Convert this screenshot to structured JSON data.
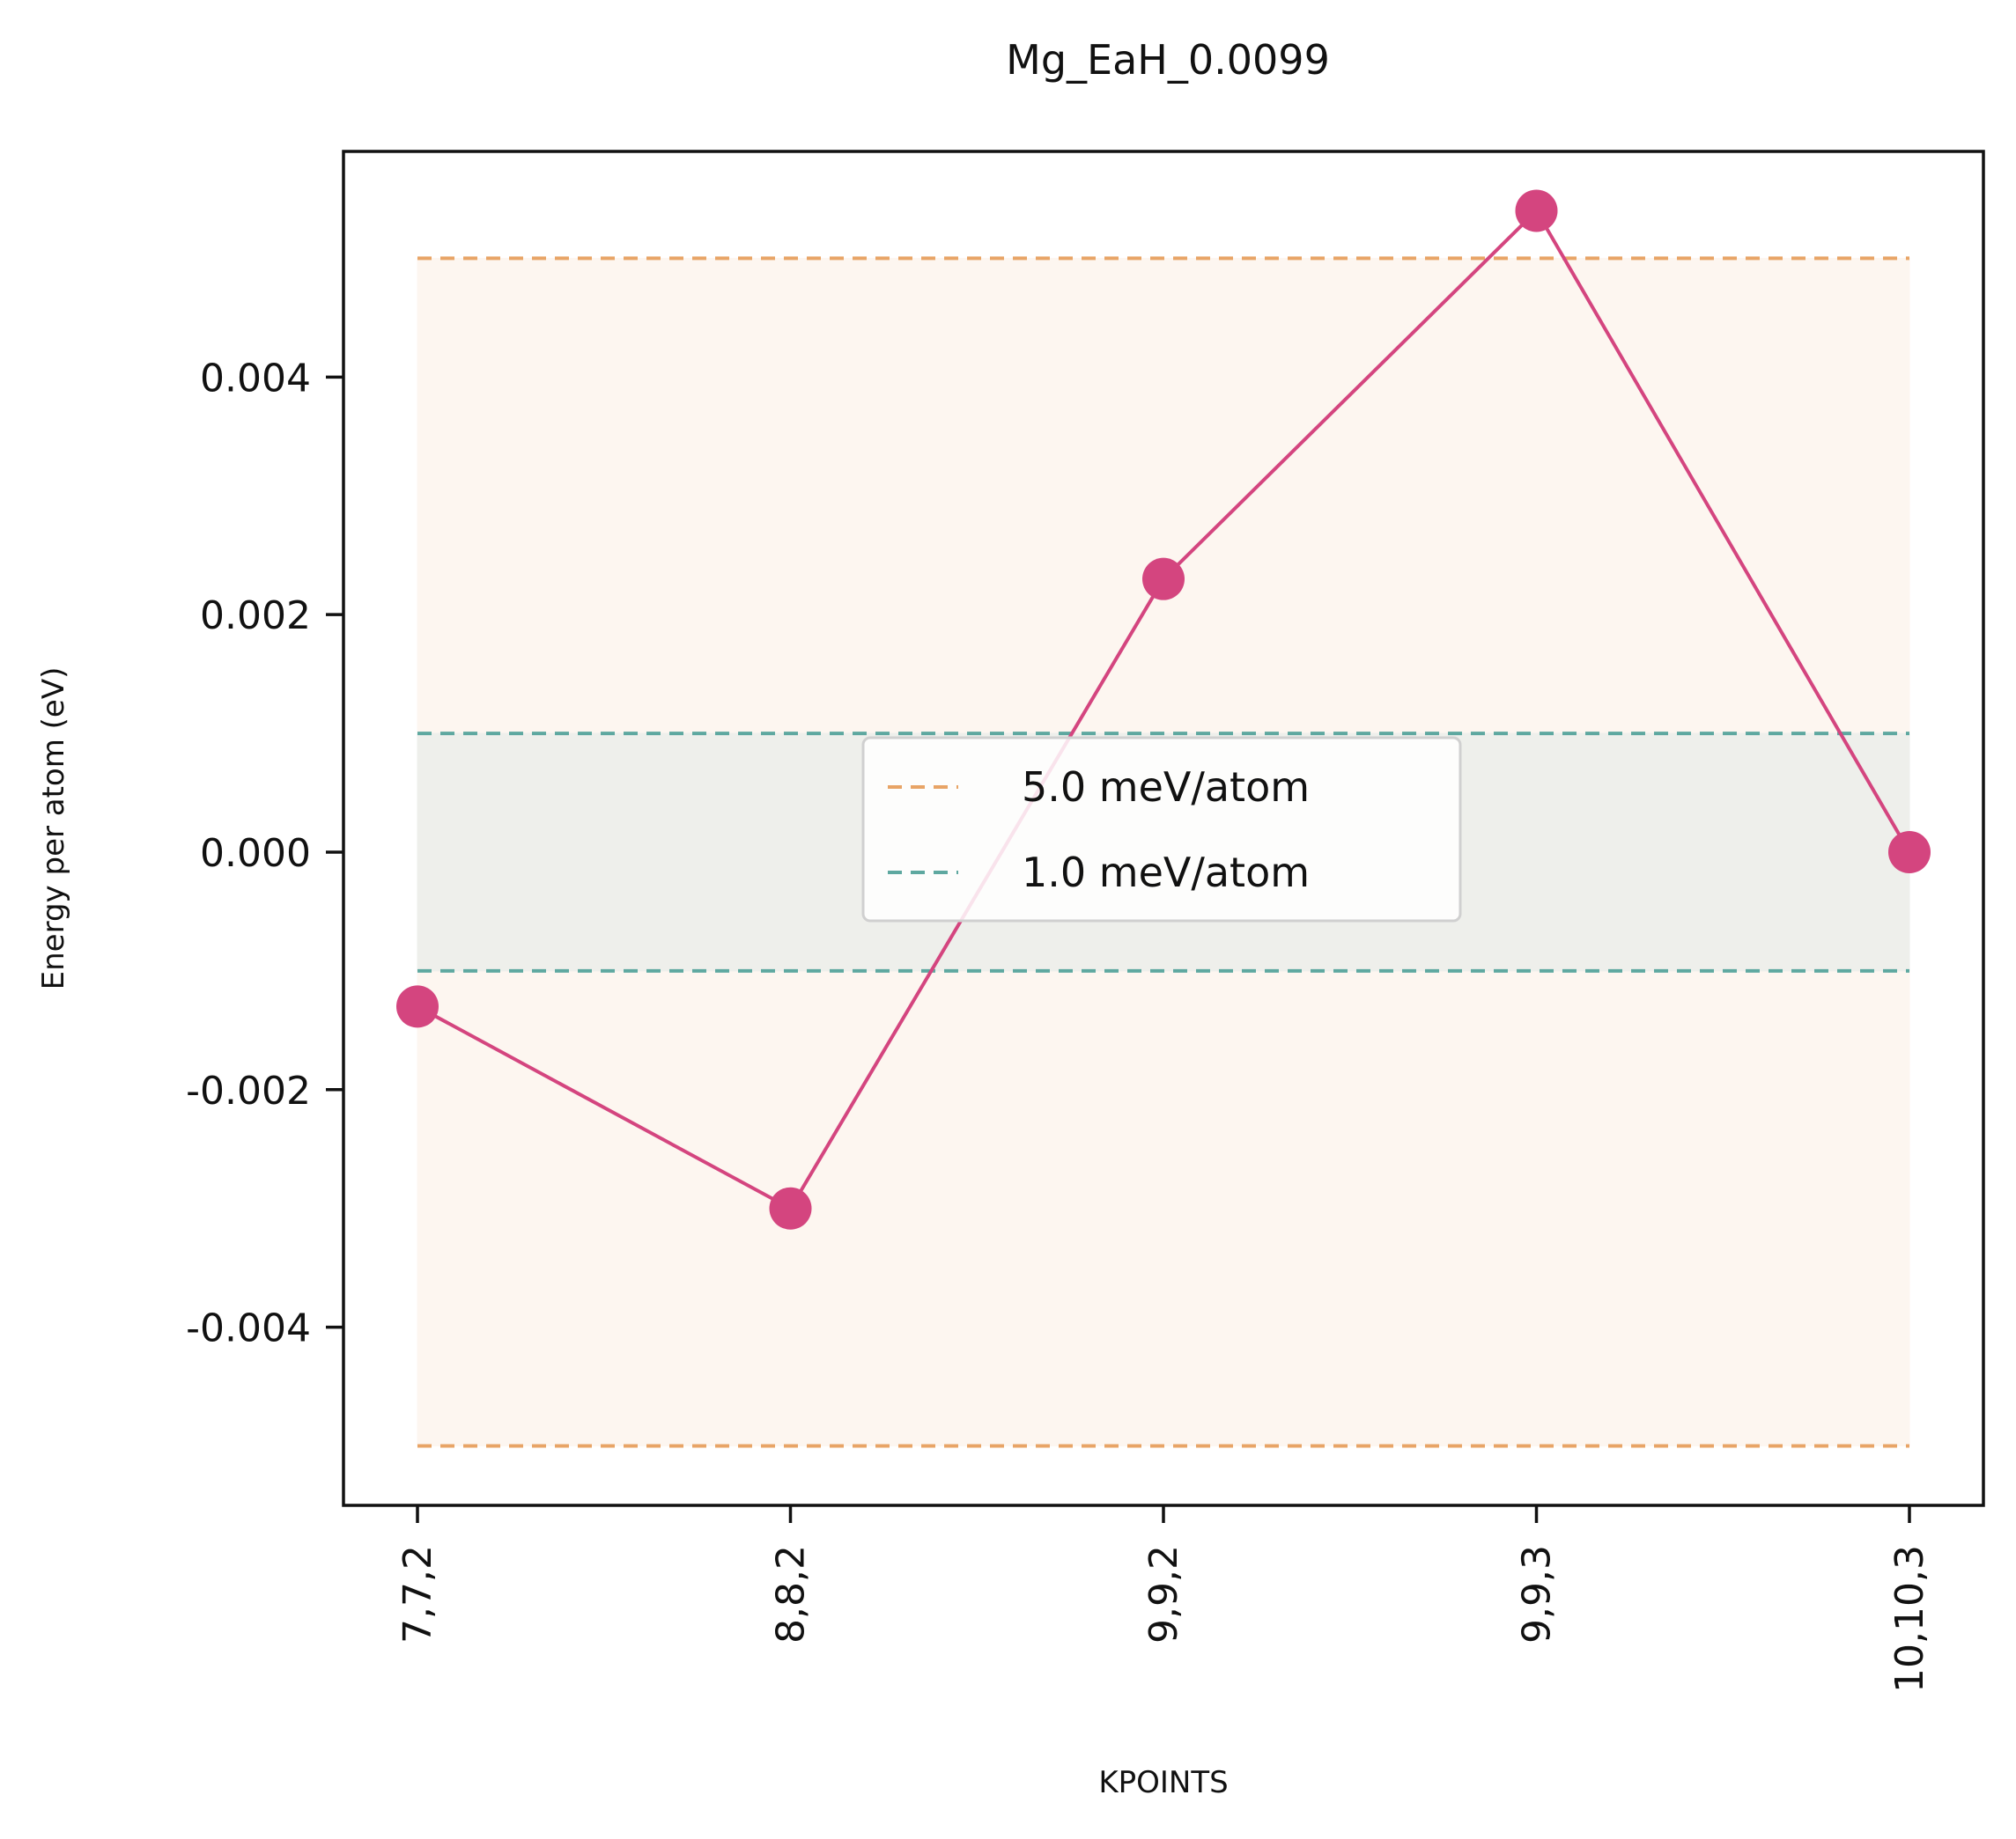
{
  "chart_data": {
    "type": "line",
    "title": "Mg_EaH_0.0099",
    "xlabel": "KPOINTS",
    "ylabel": "Energy per atom (eV)",
    "categories": [
      "7,7,2",
      "8,8,2",
      "9,9,2",
      "9,9,3",
      "10,10,3"
    ],
    "series": [
      {
        "values": [
          -0.0013,
          -0.003,
          0.0023,
          0.0054,
          0.0
        ],
        "color": "#d4457f"
      }
    ],
    "ylim": [
      -0.0055,
      0.0059
    ],
    "yticks": [
      {
        "value": 0.004,
        "label": "0.004"
      },
      {
        "value": 0.002,
        "label": "0.002"
      },
      {
        "value": 0.0,
        "label": "0.000"
      },
      {
        "value": -0.002,
        "label": "-0.002"
      },
      {
        "value": -0.004,
        "label": "-0.004"
      }
    ],
    "bands": [
      {
        "name": "5.0 meV/atom",
        "lower": -0.005,
        "upper": 0.005,
        "line_color": "#e8a466",
        "fill_color": "#fdf6f0"
      },
      {
        "name": "1.0 meV/atom",
        "lower": -0.001,
        "upper": 0.001,
        "line_color": "#5ea8a0",
        "fill_color": "#eeefeb"
      }
    ],
    "legend_position": "center",
    "grid": false
  }
}
